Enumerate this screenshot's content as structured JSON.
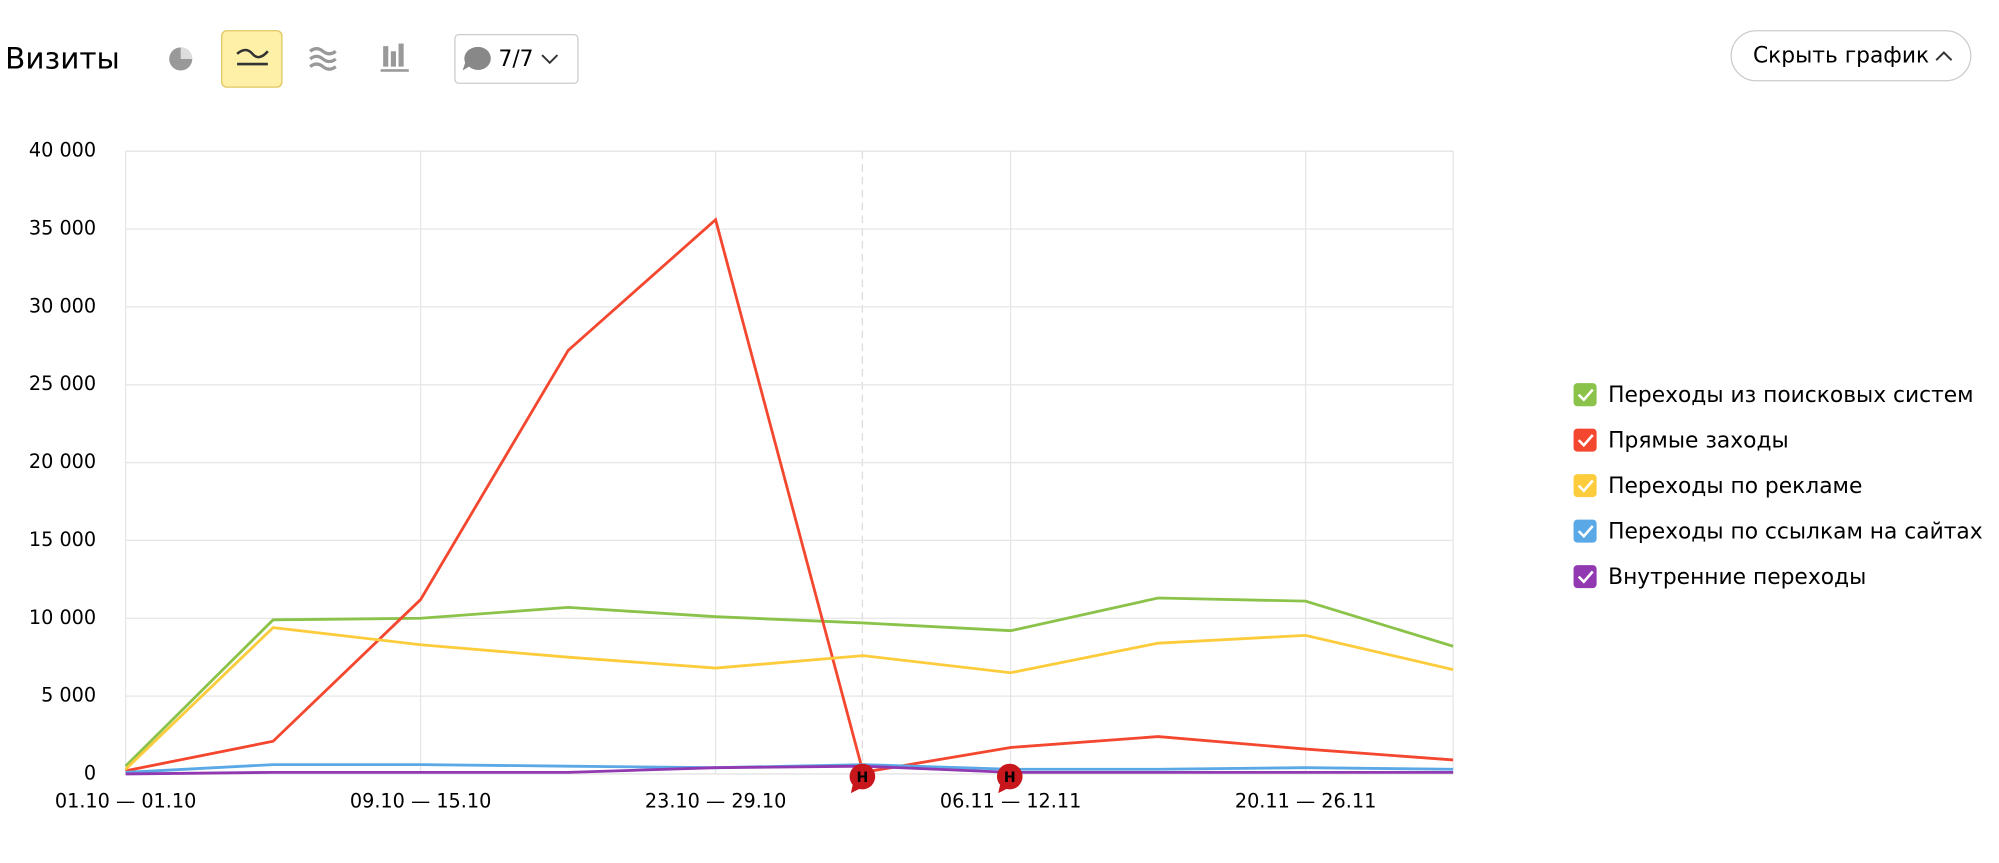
{
  "toolbar": {
    "title": "Визиты",
    "comments": "7/7",
    "hide_button": "Скрыть график"
  },
  "chart_data": {
    "type": "line",
    "categories": [
      "01.10 — 01.10",
      null,
      "09.10 — 15.10",
      null,
      "23.10 — 29.10",
      null,
      "06.11 — 12.11",
      null,
      "20.11 — 26.11",
      null
    ],
    "series": [
      {
        "name": "Переходы из поисковых систем",
        "color": "#8bc34a",
        "values": [
          500,
          9900,
          10000,
          10700,
          10100,
          9700,
          9200,
          11300,
          11100,
          8200
        ]
      },
      {
        "name": "Прямые заходы",
        "color": "#f4472f",
        "values": [
          200,
          2100,
          11200,
          27200,
          35600,
          100,
          1700,
          2400,
          1600,
          900
        ]
      },
      {
        "name": "Переходы по рекламе",
        "color": "#fccc3c",
        "values": [
          300,
          9400,
          8300,
          7500,
          6800,
          7600,
          6500,
          8400,
          8900,
          6700
        ]
      },
      {
        "name": "Переходы по ссылкам на сайтах",
        "color": "#5aa8e6",
        "values": [
          100,
          600,
          600,
          500,
          400,
          600,
          300,
          300,
          400,
          300
        ]
      },
      {
        "name": "Внутренние переходы",
        "color": "#9039b0",
        "values": [
          0,
          100,
          100,
          100,
          400,
          500,
          100,
          100,
          100,
          100
        ]
      }
    ],
    "ylim": [
      0,
      40000
    ],
    "yticks": [
      0,
      {
        "value": 5000,
        "label": "5 000"
      },
      {
        "value": 10000,
        "label": "10 000"
      },
      {
        "value": 15000,
        "label": "15 000"
      },
      {
        "value": 20000,
        "label": "20 000"
      },
      {
        "value": 25000,
        "label": "25 000"
      },
      {
        "value": 30000,
        "label": "30 000"
      },
      {
        "value": 35000,
        "label": "35 000"
      },
      {
        "value": 40000,
        "label": "40 000"
      }
    ],
    "grid": true,
    "legend": "right",
    "annotations": [
      "Н",
      "Н"
    ]
  }
}
